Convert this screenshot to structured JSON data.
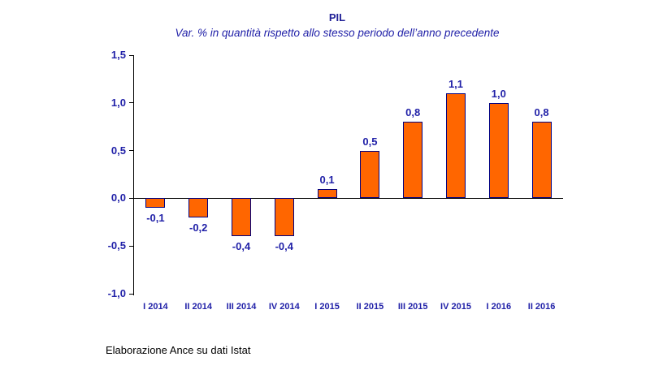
{
  "chart_data": {
    "type": "bar",
    "title": "PIL",
    "subtitle": "Var. % in quantità rispetto allo stesso periodo dell’anno precedente",
    "categories": [
      "I 2014",
      "II 2014",
      "III 2014",
      "IV 2014",
      "I 2015",
      "II 2015",
      "III 2015",
      "IV 2015",
      "I 2016",
      "II 2016"
    ],
    "values": [
      -0.1,
      -0.2,
      -0.4,
      -0.4,
      0.1,
      0.5,
      0.8,
      1.1,
      1.0,
      0.8
    ],
    "value_labels": [
      "-0,1",
      "-0,2",
      "-0,4",
      "-0,4",
      "0,1",
      "0,5",
      "0,8",
      "1,1",
      "1,0",
      "0,8"
    ],
    "xlabel": "",
    "ylabel": "",
    "ylim": [
      -1.0,
      1.5
    ],
    "y_ticks": [
      1.5,
      1.0,
      0.5,
      0.0,
      -0.5,
      -1.0
    ],
    "y_tick_labels": [
      "1,5",
      "1,0",
      "0,5",
      "0,0",
      "-0,5",
      "-1,0"
    ],
    "grid": false,
    "legend_position": "none",
    "bar_color": "#FF6600",
    "bar_border_color": "#000080",
    "label_color": "#2121A8",
    "axis_color": "#000000"
  },
  "footer": {
    "source": "Elaborazione Ance su dati Istat"
  }
}
